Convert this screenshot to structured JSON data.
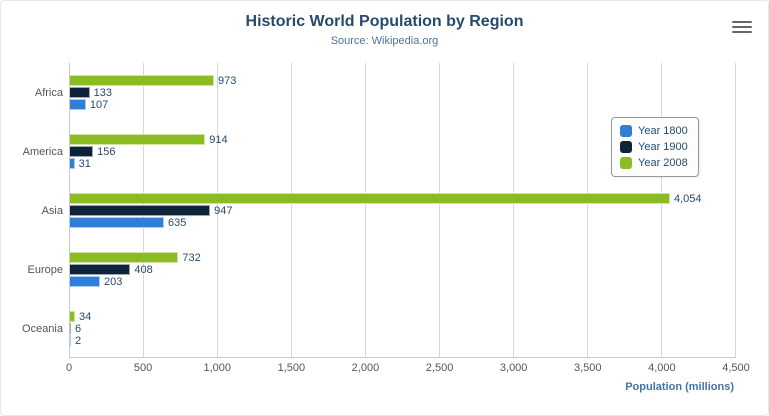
{
  "chart_data": {
    "type": "bar",
    "title": "Historic World Population by Region",
    "subtitle": "Source: Wikipedia.org",
    "categories": [
      "Africa",
      "America",
      "Asia",
      "Europe",
      "Oceania"
    ],
    "series": [
      {
        "name": "Year 1800",
        "color": "#2f7ed8",
        "values": [
          107,
          31,
          635,
          203,
          2
        ]
      },
      {
        "name": "Year 1900",
        "color": "#0d233a",
        "values": [
          133,
          156,
          947,
          408,
          6
        ]
      },
      {
        "name": "Year 2008",
        "color": "#8bbc21",
        "values": [
          973,
          914,
          4054,
          732,
          34
        ]
      }
    ],
    "xlabel": "Population (millions)",
    "ylabel": "",
    "xlim": [
      0,
      4500
    ],
    "xticks": [
      0,
      500,
      1000,
      1500,
      2000,
      2500,
      3000,
      3500,
      4000,
      4500
    ],
    "grid": true,
    "legend_position": "right",
    "bar_order_top_to_bottom": [
      "Year 2008",
      "Year 1900",
      "Year 1800"
    ]
  },
  "colors": {
    "title": "#274b6d",
    "subtitle": "#4d759e",
    "axis_title": "#4572a7",
    "gridline": "#d9d9d9"
  },
  "menu_icon_name": "hamburger-export-menu-icon"
}
